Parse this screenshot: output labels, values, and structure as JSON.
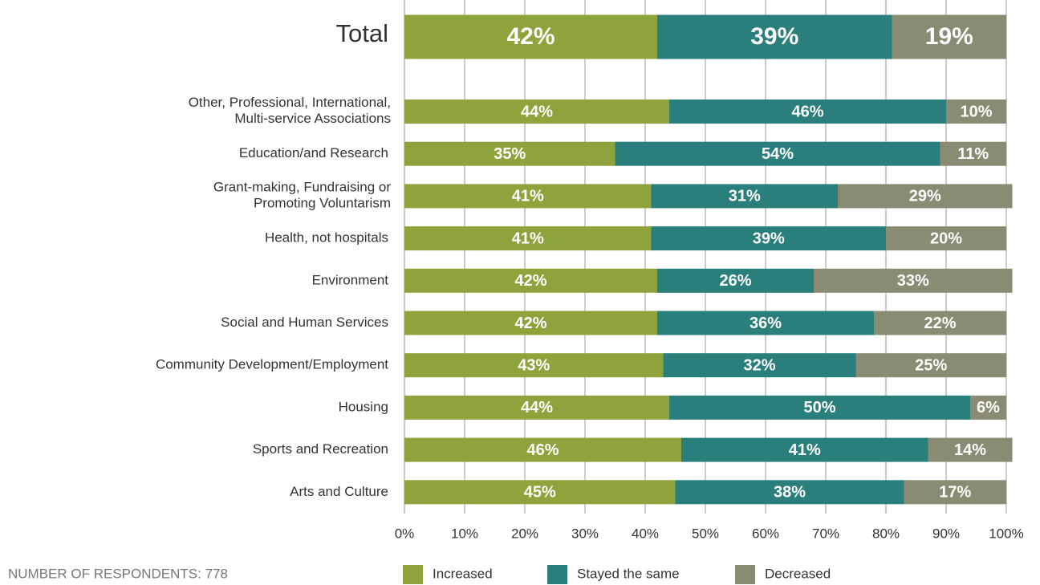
{
  "chart_data": {
    "type": "bar",
    "orientation": "horizontal",
    "stacked": true,
    "categories": [
      "Total",
      [
        "Other, Professional, International,",
        "Multi-service Associations"
      ],
      "Education/and Research",
      [
        "Grant-making, Fundraising or",
        "Promoting Voluntarism"
      ],
      "Health, not hospitals",
      "Environment",
      "Social and Human Services",
      "Community Development/Employment",
      "Housing",
      "Sports and Recreation",
      "Arts and Culture"
    ],
    "series": [
      {
        "name": "Increased",
        "color": "#8fa33c",
        "values": [
          42,
          44,
          35,
          41,
          41,
          42,
          42,
          43,
          44,
          46,
          45
        ],
        "value_labels": [
          "42%",
          "44%",
          "35%",
          "41%",
          "41%",
          "42%",
          "42%",
          "43%",
          "44%",
          "46%",
          "45%"
        ]
      },
      {
        "name": "Stayed the same",
        "color": "#2a7f7c",
        "values": [
          39,
          46,
          54,
          31,
          39,
          26,
          36,
          32,
          50,
          41,
          38
        ],
        "value_labels": [
          "39%",
          "46%",
          "54%",
          "31%",
          "39%",
          "26%",
          "36%",
          "32%",
          "50%",
          "41%",
          "38%"
        ]
      },
      {
        "name": "Decreased",
        "color": "#8a8b73",
        "values": [
          19,
          10,
          11,
          29,
          20,
          33,
          22,
          25,
          6,
          14,
          17
        ],
        "value_labels": [
          "19%",
          "10%",
          "11%",
          "29%",
          "20%",
          "33%",
          "22%",
          "25%",
          "6%",
          "14%",
          "17%"
        ]
      }
    ],
    "xlim": [
      0,
      100
    ],
    "xticks": [
      {
        "value": 0,
        "label": "0%"
      },
      {
        "value": 10,
        "label": "10%"
      },
      {
        "value": 20,
        "label": "20%"
      },
      {
        "value": 30,
        "label": "30%"
      },
      {
        "value": 40,
        "label": "40%"
      },
      {
        "value": 50,
        "label": "50%"
      },
      {
        "value": 60,
        "label": "60%"
      },
      {
        "value": 70,
        "label": "70%"
      },
      {
        "value": 80,
        "label": "80%"
      },
      {
        "value": 90,
        "label": "90%"
      },
      {
        "value": 100,
        "label": "100%"
      }
    ],
    "grid": true,
    "legend": "bottom",
    "footnote": "NUMBER OF RESPONDENTS: 778"
  }
}
